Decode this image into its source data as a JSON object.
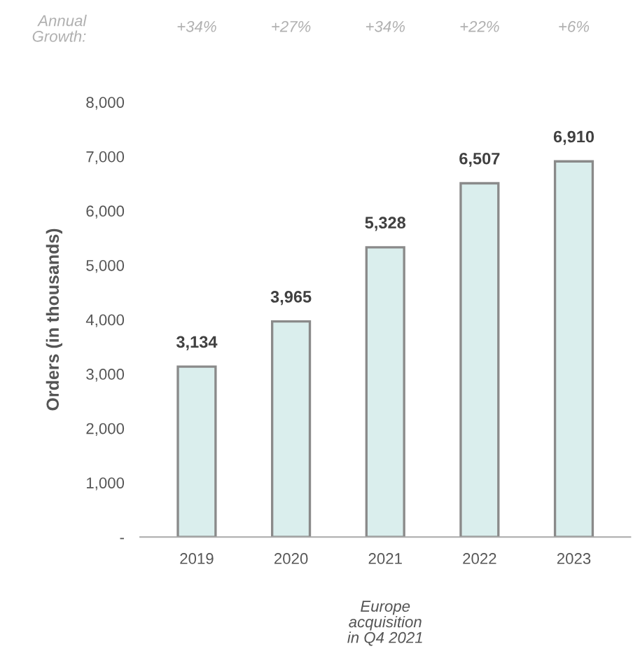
{
  "chart_data": {
    "type": "bar",
    "ylabel": "Orders (in thousands)",
    "categories": [
      "2019",
      "2020",
      "2021",
      "2022",
      "2023"
    ],
    "values": [
      3134,
      3965,
      5328,
      6507,
      6910
    ],
    "value_labels": [
      "3,134",
      "3,965",
      "5,328",
      "6,507",
      "6,910"
    ],
    "color": "#daeeed",
    "ylim": [
      0,
      8000
    ],
    "yticks": [
      {
        "value": 0,
        "label": "-"
      },
      {
        "value": 1000,
        "label": "1,000"
      },
      {
        "value": 2000,
        "label": "2,000"
      },
      {
        "value": 3000,
        "label": "3,000"
      },
      {
        "value": 4000,
        "label": "4,000"
      },
      {
        "value": 5000,
        "label": "5,000"
      },
      {
        "value": 6000,
        "label": "6,000"
      },
      {
        "value": 7000,
        "label": "7,000"
      },
      {
        "value": 8000,
        "label": "8,000"
      }
    ],
    "grid": false,
    "legend": false,
    "annotations": [
      "Annual\nGrowth:",
      "+34%",
      "+27%",
      "+34%",
      "+22%",
      "+6%",
      "Europe\nacquisition\nin Q4 2021"
    ]
  }
}
